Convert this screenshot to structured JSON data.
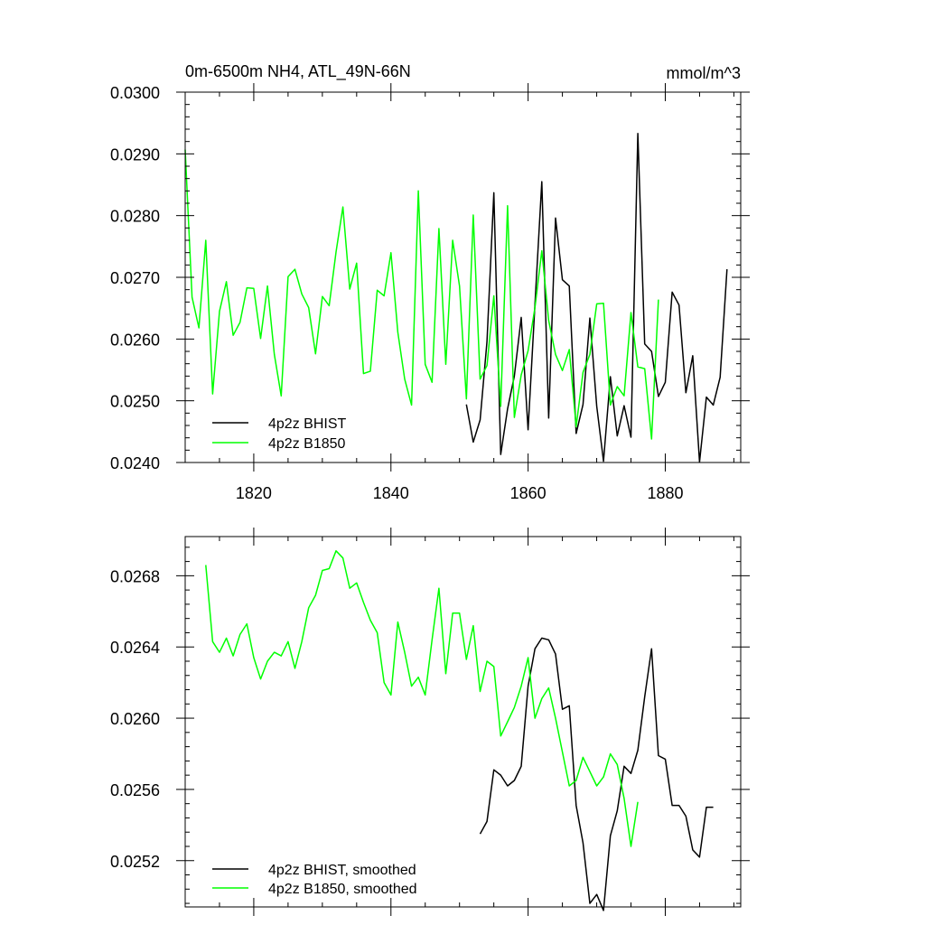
{
  "chart_data": [
    {
      "type": "line",
      "title_left": "0m-6500m NH4, ATL_49N-66N",
      "title_right": "mmol/m^3",
      "xlabel": "",
      "ylabel": "",
      "xlim": [
        1810,
        1891
      ],
      "ylim": [
        0.024,
        0.03
      ],
      "xticks": [
        1820,
        1840,
        1860,
        1880
      ],
      "xtick_labels": [
        "1820",
        "1840",
        "1860",
        "1880"
      ],
      "yticks": [
        0.024,
        0.025,
        0.026,
        0.027,
        0.028,
        0.029,
        0.03
      ],
      "ytick_labels": [
        "0.0240",
        "0.0250",
        "0.0260",
        "0.0270",
        "0.0280",
        "0.0290",
        "0.0300"
      ],
      "grid": false,
      "legend_position": "bottom-left",
      "series": [
        {
          "name": "4p2z BHIST",
          "color": "#000000",
          "x": [
            1851,
            1852,
            1853,
            1854,
            1855,
            1856,
            1857,
            1858,
            1859,
            1860,
            1861,
            1862,
            1863,
            1864,
            1865,
            1866,
            1867,
            1868,
            1869,
            1870,
            1871,
            1872,
            1873,
            1874,
            1875,
            1876,
            1877,
            1878,
            1879,
            1880,
            1881,
            1882,
            1883,
            1884,
            1885,
            1886,
            1887,
            1888,
            1889
          ],
          "y": [
            0.02494,
            0.02433,
            0.02469,
            0.02596,
            0.02837,
            0.02413,
            0.02487,
            0.0254,
            0.02635,
            0.02453,
            0.02656,
            0.02855,
            0.02472,
            0.02796,
            0.02696,
            0.02686,
            0.02447,
            0.02494,
            0.02634,
            0.02491,
            0.02402,
            0.02539,
            0.02443,
            0.02492,
            0.02441,
            0.02933,
            0.02592,
            0.0258,
            0.02507,
            0.0253,
            0.02676,
            0.02655,
            0.02513,
            0.02573,
            0.02401,
            0.02506,
            0.02493,
            0.02538,
            0.02713
          ]
        },
        {
          "name": "4p2z B1850",
          "color": "#00ff00",
          "x": [
            1810,
            1811,
            1812,
            1813,
            1814,
            1815,
            1816,
            1817,
            1818,
            1819,
            1820,
            1821,
            1822,
            1823,
            1824,
            1825,
            1826,
            1827,
            1828,
            1829,
            1830,
            1831,
            1832,
            1833,
            1834,
            1835,
            1836,
            1837,
            1838,
            1839,
            1840,
            1841,
            1842,
            1843,
            1844,
            1845,
            1846,
            1847,
            1848,
            1849,
            1850,
            1851,
            1852,
            1853,
            1854,
            1855,
            1856,
            1857,
            1858,
            1859,
            1860,
            1861,
            1862,
            1863,
            1864,
            1865,
            1866,
            1867,
            1868,
            1869,
            1870,
            1871,
            1872,
            1873,
            1874,
            1875,
            1876,
            1877,
            1878,
            1879
          ],
          "y": [
            0.02907,
            0.02668,
            0.02618,
            0.0276,
            0.02511,
            0.02645,
            0.02693,
            0.02606,
            0.02627,
            0.02683,
            0.02682,
            0.02601,
            0.02686,
            0.02575,
            0.02508,
            0.02701,
            0.02713,
            0.02673,
            0.02651,
            0.02576,
            0.02669,
            0.02654,
            0.02741,
            0.02814,
            0.02681,
            0.02723,
            0.02544,
            0.02548,
            0.02679,
            0.0267,
            0.0274,
            0.02611,
            0.02535,
            0.02493,
            0.0284,
            0.02559,
            0.0253,
            0.02779,
            0.02559,
            0.0276,
            0.02686,
            0.02503,
            0.02801,
            0.02535,
            0.02557,
            0.0267,
            0.02491,
            0.02816,
            0.02473,
            0.02542,
            0.02581,
            0.02651,
            0.02743,
            0.0263,
            0.02575,
            0.02549,
            0.02583,
            0.02458,
            0.02546,
            0.02575,
            0.02657,
            0.02658,
            0.02493,
            0.02523,
            0.02508,
            0.02643,
            0.02555,
            0.02552,
            0.02438,
            0.02664
          ]
        }
      ]
    },
    {
      "type": "line",
      "xlabel": "",
      "ylabel": "",
      "xlim": [
        1810,
        1891
      ],
      "ylim": [
        0.02494,
        0.02702
      ],
      "xticks": [
        1820,
        1840,
        1860,
        1880
      ],
      "yticks": [
        0.0252,
        0.0256,
        0.026,
        0.0264,
        0.0268
      ],
      "ytick_labels": [
        "0.0252",
        "0.0256",
        "0.0260",
        "0.0264",
        "0.0268"
      ],
      "grid": false,
      "legend_position": "bottom-left",
      "series": [
        {
          "name": "4p2z BHIST, smoothed",
          "color": "#000000",
          "x": [
            1853,
            1854,
            1855,
            1856,
            1857,
            1858,
            1859,
            1860,
            1861,
            1862,
            1863,
            1864,
            1865,
            1866,
            1867,
            1868,
            1869,
            1870,
            1871,
            1872,
            1873,
            1874,
            1875,
            1876,
            1877,
            1878,
            1879,
            1880,
            1881,
            1882,
            1883,
            1884,
            1885,
            1886,
            1887
          ],
          "y": [
            0.02535,
            0.02542,
            0.02571,
            0.02568,
            0.02562,
            0.02565,
            0.02573,
            0.02618,
            0.02639,
            0.02645,
            0.02644,
            0.02636,
            0.02605,
            0.02607,
            0.02551,
            0.0253,
            0.02496,
            0.02501,
            0.02492,
            0.02534,
            0.02548,
            0.02573,
            0.02569,
            0.02582,
            0.02612,
            0.02639,
            0.02579,
            0.02577,
            0.02551,
            0.02551,
            0.02545,
            0.02526,
            0.02522,
            0.0255,
            0.0255
          ]
        },
        {
          "name": "4p2z B1850, smoothed",
          "color": "#00ff00",
          "x": [
            1813,
            1814,
            1815,
            1816,
            1817,
            1818,
            1819,
            1820,
            1821,
            1822,
            1823,
            1824,
            1825,
            1826,
            1827,
            1828,
            1829,
            1830,
            1831,
            1832,
            1833,
            1834,
            1835,
            1836,
            1837,
            1838,
            1839,
            1840,
            1841,
            1842,
            1843,
            1844,
            1845,
            1846,
            1847,
            1848,
            1849,
            1850,
            1851,
            1852,
            1853,
            1854,
            1855,
            1856,
            1857,
            1858,
            1859,
            1860,
            1861,
            1862,
            1863,
            1864,
            1865,
            1866,
            1867,
            1868,
            1869,
            1870,
            1871,
            1872,
            1873,
            1874,
            1875,
            1876
          ],
          "y": [
            0.02686,
            0.02643,
            0.02637,
            0.02645,
            0.02635,
            0.02647,
            0.02653,
            0.02634,
            0.02622,
            0.02632,
            0.02637,
            0.02635,
            0.02643,
            0.02628,
            0.02643,
            0.02662,
            0.02669,
            0.02683,
            0.02684,
            0.02694,
            0.0269,
            0.02673,
            0.02676,
            0.02665,
            0.02655,
            0.02648,
            0.0262,
            0.02613,
            0.02654,
            0.02637,
            0.02618,
            0.02623,
            0.02613,
            0.02644,
            0.02673,
            0.02625,
            0.02659,
            0.02659,
            0.02633,
            0.02652,
            0.02615,
            0.02632,
            0.02629,
            0.0259,
            0.02598,
            0.02606,
            0.02618,
            0.02634,
            0.026,
            0.02611,
            0.02617,
            0.026,
            0.02581,
            0.02562,
            0.02565,
            0.02578,
            0.0257,
            0.02562,
            0.02567,
            0.0258,
            0.02574,
            0.02555,
            0.02528,
            0.02553
          ]
        }
      ]
    }
  ]
}
